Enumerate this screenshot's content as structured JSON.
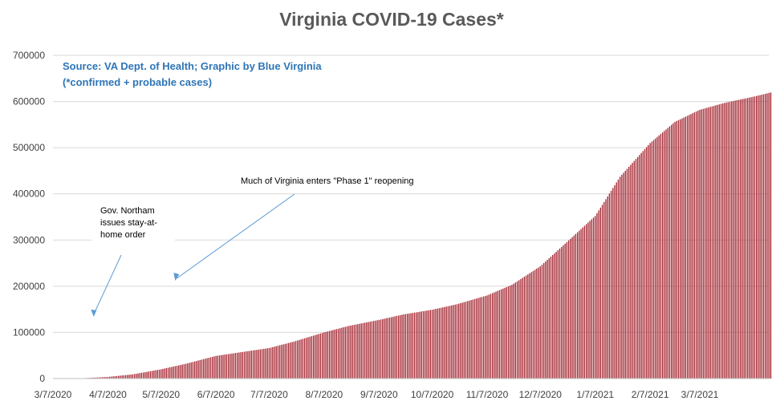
{
  "chart_data": {
    "type": "bar",
    "title": "Virginia COVID-19 Cases*",
    "xlabel": "",
    "ylabel": "",
    "source_line1": "Source: VA Dept. of Health; Graphic by Blue Virginia",
    "source_line2": "(*confirmed + probable cases)",
    "ylim": [
      0,
      700000
    ],
    "yticks": [
      "0",
      "100000",
      "200000",
      "300000",
      "400000",
      "500000",
      "600000",
      "700000"
    ],
    "xticks": [
      "3/7/2020",
      "4/7/2020",
      "5/7/2020",
      "6/7/2020",
      "7/7/2020",
      "8/7/2020",
      "9/7/2020",
      "10/7/2020",
      "11/7/2020",
      "12/7/2020",
      "1/7/2021",
      "2/7/2021",
      "3/7/2021"
    ],
    "grid": true,
    "legend": "none",
    "bar_color": "#a3232e",
    "date_range": [
      "3/7/2020",
      "4/25/2021"
    ],
    "series": [
      {
        "x": [
          "3/7/2020",
          "3/21/2020",
          "4/7/2020",
          "4/21/2020",
          "5/7/2020",
          "5/21/2020",
          "6/7/2020",
          "6/21/2020",
          "7/7/2020",
          "7/21/2020",
          "8/7/2020",
          "8/21/2020",
          "9/7/2020",
          "9/21/2020",
          "10/7/2020",
          "10/21/2020",
          "11/7/2020",
          "11/21/2020",
          "12/7/2020",
          "12/21/2020",
          "1/7/2021",
          "1/21/2021",
          "2/7/2021",
          "2/21/2021",
          "3/7/2021",
          "3/21/2021",
          "4/7/2021",
          "4/25/2021"
        ],
        "values": [
          0,
          150,
          3500,
          9000,
          20000,
          32000,
          49000,
          57000,
          66000,
          80000,
          100000,
          114000,
          127000,
          139000,
          149000,
          161000,
          180000,
          203000,
          243000,
          292000,
          352000,
          437000,
          510000,
          556000,
          582000,
          597000,
          611000,
          628000
        ]
      }
    ],
    "annotations": [
      {
        "lines": [
          "Gov. Northam",
          "issues stay-at-",
          "home order"
        ],
        "arrow_to": "3/30/2020"
      },
      {
        "lines": [
          "Much of Virginia enters \"Phase 1\" reopening"
        ],
        "arrow_to": "5/15/2020"
      }
    ]
  }
}
